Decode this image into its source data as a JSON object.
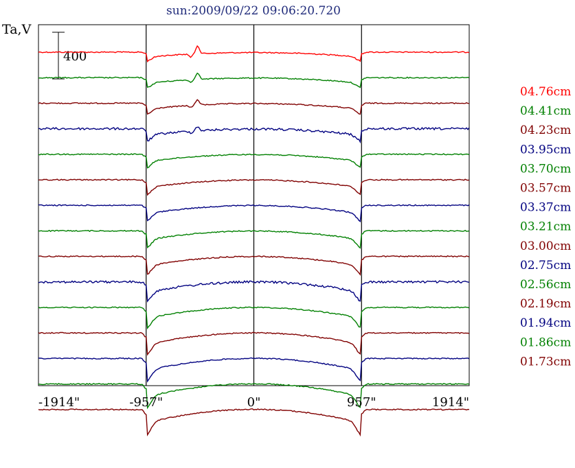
{
  "chart_data": {
    "type": "line",
    "title": "sun:2009/09/22 09:06:20.720",
    "ylabel": "Ta,V",
    "xlim": [
      -1914,
      1914
    ],
    "x_ticks": [
      "-1914\"",
      "-957\"",
      "0\"",
      "957\"",
      "1914\""
    ],
    "x_tick_values": [
      -1914,
      -957,
      0,
      957,
      1914
    ],
    "vertical_lines": [
      -957,
      0,
      957
    ],
    "scale_bar": {
      "label": "400",
      "value": 400
    },
    "grid": false,
    "legend_position": "right",
    "series": [
      {
        "name": "04.76cm",
        "color": "#ff0000"
      },
      {
        "name": "04.41cm",
        "color": "#008000"
      },
      {
        "name": "04.23cm",
        "color": "#800000"
      },
      {
        "name": "03.95cm",
        "color": "#000080"
      },
      {
        "name": "03.70cm",
        "color": "#008000"
      },
      {
        "name": "03.57cm",
        "color": "#800000"
      },
      {
        "name": "03.37cm",
        "color": "#000080"
      },
      {
        "name": "03.21cm",
        "color": "#008000"
      },
      {
        "name": "03.00cm",
        "color": "#800000"
      },
      {
        "name": "02.75cm",
        "color": "#000080"
      },
      {
        "name": "02.56cm",
        "color": "#008000"
      },
      {
        "name": "02.19cm",
        "color": "#800000"
      },
      {
        "name": "01.94cm",
        "color": "#000080"
      },
      {
        "name": "01.86cm",
        "color": "#008000"
      },
      {
        "name": "01.73cm",
        "color": "#800000"
      }
    ]
  }
}
